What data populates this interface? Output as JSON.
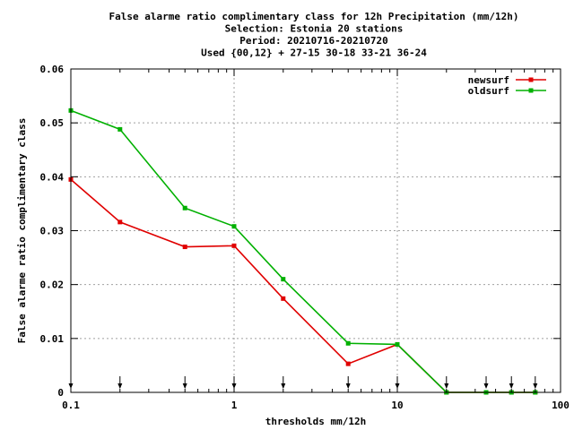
{
  "chart_data": {
    "type": "line",
    "title": [
      "False alarme ratio complimentary class  for 12h Precipitation (mm/12h)",
      "Selection: Estonia     20 stations",
      "Period: 20210716-20210720",
      "Used {00,12} + 27-15 30-18 33-21 36-24"
    ],
    "xlabel": "thresholds mm/12h",
    "ylabel": "False alarme ratio complimentary class",
    "x_scale": "log",
    "xlim": [
      0.1,
      100
    ],
    "ylim": [
      0,
      0.06
    ],
    "grid": true,
    "legend_position": "top-right",
    "x_tick_labels": [
      "0.1",
      "1",
      "10",
      "100"
    ],
    "y_tick_labels": [
      "0",
      "0.01",
      "0.02",
      "0.03",
      "0.04",
      "0.05",
      "0.06"
    ],
    "threshold_markers": [
      0.1,
      0.2,
      0.5,
      1,
      2,
      5,
      10,
      20,
      35,
      50,
      70
    ],
    "series": [
      {
        "name": "newsurf",
        "color": "#e00000",
        "x": [
          0.1,
          0.2,
          0.5,
          1,
          2,
          5,
          10,
          20,
          35,
          50,
          70
        ],
        "y": [
          0.0395,
          0.0316,
          0.027,
          0.0272,
          0.0174,
          0.0053,
          0.0089,
          0.0,
          0.0,
          0.0,
          0.0
        ]
      },
      {
        "name": "oldsurf",
        "color": "#00b000",
        "x": [
          0.1,
          0.2,
          0.5,
          1,
          2,
          5,
          10,
          20,
          35,
          50,
          70
        ],
        "y": [
          0.0523,
          0.0488,
          0.0342,
          0.0308,
          0.021,
          0.0091,
          0.0089,
          0.0,
          0.0,
          0.0,
          0.0
        ]
      }
    ]
  }
}
